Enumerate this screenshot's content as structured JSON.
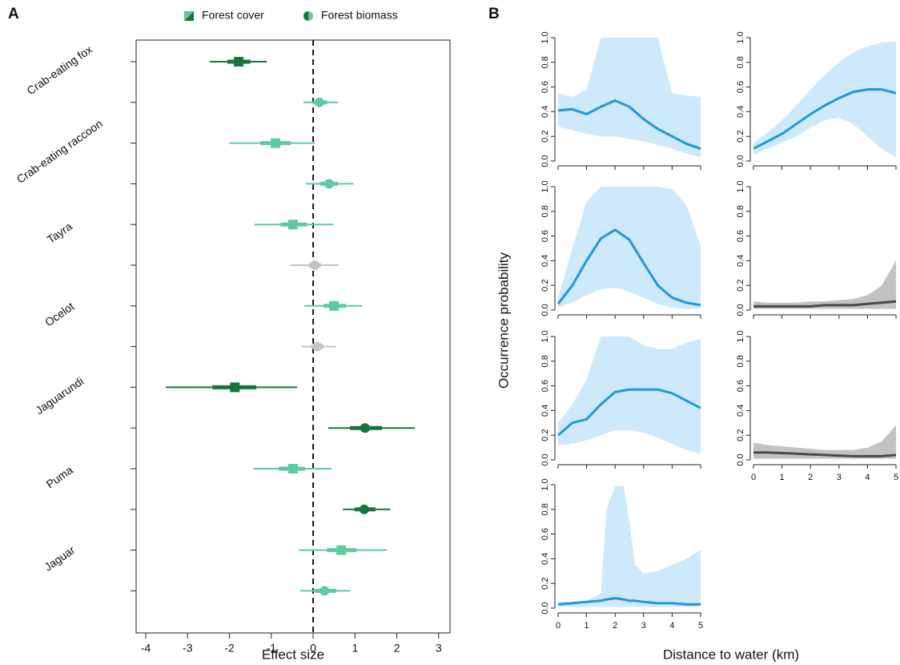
{
  "panel_b": {
    "label": "B",
    "ylabel": "Occurrence probability",
    "xlabel": "Distance to water (km)"
  },
  "chart_data": [
    {
      "type": "forest",
      "panel_label": "A",
      "xlabel": "Effect size",
      "categories": [
        "Crab-eating fox",
        "Crab-eating raccoon",
        "Tayra",
        "Ocelot",
        "Jaguarundi",
        "Puma",
        "Jaguar"
      ],
      "xlim": [
        -4.23,
        3.27
      ],
      "xticks": [
        -4,
        -3,
        -2,
        -1,
        0,
        1,
        2,
        3
      ],
      "refline": 0,
      "series": [
        {
          "name": "Forest cover",
          "marker": "square",
          "values": [
            -1.78,
            -0.9,
            -0.48,
            0.5,
            -1.87,
            -0.48,
            0.67
          ],
          "ci_inner": [
            [
              -2.05,
              -1.5
            ],
            [
              -1.26,
              -0.54
            ],
            [
              -0.78,
              -0.15
            ],
            [
              0.25,
              0.78
            ],
            [
              -2.41,
              -1.36
            ],
            [
              -0.82,
              -0.19
            ],
            [
              0.33,
              1.03
            ]
          ],
          "ci_outer": [
            [
              -2.47,
              -1.11
            ],
            [
              -2.0,
              0.04
            ],
            [
              -1.4,
              0.48
            ],
            [
              -0.21,
              1.17
            ],
            [
              -3.52,
              -0.38
            ],
            [
              -1.43,
              0.44
            ],
            [
              -0.34,
              1.76
            ]
          ],
          "colors": [
            "#17753a",
            "#5ecaa0",
            "#5ecaa0",
            "#5ecaa0",
            "#17753a",
            "#5ecaa0",
            "#5ecaa0"
          ]
        },
        {
          "name": "Forest biomass",
          "marker": "circle",
          "values": [
            0.15,
            0.38,
            0.04,
            0.1,
            1.24,
            1.22,
            0.27
          ],
          "ci_inner": [
            [
              0.0,
              0.33
            ],
            [
              0.17,
              0.59
            ],
            [
              -0.11,
              0.19
            ],
            [
              -0.05,
              0.25
            ],
            [
              0.88,
              1.64
            ],
            [
              0.99,
              1.49
            ],
            [
              0.04,
              0.55
            ]
          ],
          "ci_outer": [
            [
              -0.23,
              0.59
            ],
            [
              -0.17,
              0.96
            ],
            [
              -0.54,
              0.61
            ],
            [
              -0.29,
              0.54
            ],
            [
              0.36,
              2.43
            ],
            [
              0.71,
              1.84
            ],
            [
              -0.31,
              0.88
            ]
          ],
          "colors": [
            "#5ecaa0",
            "#5ecaa0",
            "#c4c4c4",
            "#c4c4c4",
            "#17753a",
            "#17753a",
            "#5ecaa0"
          ]
        }
      ]
    },
    {
      "type": "line",
      "x": [
        0,
        0.5,
        1,
        1.5,
        2,
        2.5,
        3,
        3.5,
        4,
        4.5,
        5
      ],
      "values": [
        0.41,
        0.42,
        0.38,
        0.44,
        0.49,
        0.44,
        0.34,
        0.26,
        0.2,
        0.14,
        0.1
      ],
      "lower": [
        0.28,
        0.25,
        0.22,
        0.2,
        0.2,
        0.18,
        0.16,
        0.13,
        0.1,
        0.06,
        0.03
      ],
      "upper": [
        0.55,
        0.52,
        0.58,
        1,
        1,
        1,
        1,
        1,
        0.55,
        0.53,
        0.52
      ],
      "color": "#1f98e0",
      "band_color": "#cde9fb",
      "xlim": [
        0,
        5
      ],
      "ylim": [
        0,
        1
      ],
      "xticks": [
        0,
        1,
        2,
        3,
        4,
        5
      ],
      "show_xtick_labels": false,
      "yticks": [
        {
          "value": 0,
          "label": "0.0"
        },
        0.2,
        0.4,
        0.6,
        0.8,
        {
          "value": 1,
          "label": "1.0"
        }
      ]
    },
    {
      "type": "line",
      "x": [
        0,
        0.5,
        1,
        1.5,
        2,
        2.5,
        3,
        3.5,
        4,
        4.5,
        5
      ],
      "values": [
        0.1,
        0.16,
        0.22,
        0.3,
        0.38,
        0.45,
        0.51,
        0.56,
        0.58,
        0.58,
        0.55
      ],
      "lower": [
        0.05,
        0.1,
        0.15,
        0.2,
        0.27,
        0.33,
        0.35,
        0.3,
        0.2,
        0.1,
        0.03
      ],
      "upper": [
        0.15,
        0.23,
        0.33,
        0.45,
        0.58,
        0.7,
        0.8,
        0.88,
        0.93,
        0.96,
        0.97
      ],
      "color": "#1f98e0",
      "band_color": "#cde9fb",
      "xlim": [
        0,
        5
      ],
      "ylim": [
        0,
        1
      ],
      "xticks": [
        0,
        1,
        2,
        3,
        4,
        5
      ],
      "show_xtick_labels": false,
      "yticks": [
        {
          "value": 0,
          "label": "0.0"
        },
        0.2,
        0.4,
        0.6,
        0.8,
        {
          "value": 1,
          "label": "1.0"
        }
      ]
    },
    {
      "type": "line",
      "x": [
        0,
        0.5,
        1,
        1.5,
        2,
        2.5,
        3,
        3.5,
        4,
        4.5,
        5
      ],
      "values": [
        0.05,
        0.2,
        0.4,
        0.58,
        0.65,
        0.57,
        0.38,
        0.2,
        0.1,
        0.06,
        0.04
      ],
      "lower": [
        0.02,
        0.06,
        0.12,
        0.17,
        0.18,
        0.15,
        0.1,
        0.05,
        0.02,
        0.01,
        0.01
      ],
      "upper": [
        0.1,
        0.5,
        0.88,
        1,
        1,
        1,
        1,
        1,
        0.98,
        0.85,
        0.52
      ],
      "color": "#1f98e0",
      "band_color": "#cde9fb",
      "xlim": [
        0,
        5
      ],
      "ylim": [
        0,
        1
      ],
      "xticks": [
        0,
        1,
        2,
        3,
        4,
        5
      ],
      "show_xtick_labels": false,
      "yticks": [
        {
          "value": 0,
          "label": "0.0"
        },
        0.2,
        0.4,
        0.6,
        0.8,
        {
          "value": 1,
          "label": "1.0"
        }
      ]
    },
    {
      "type": "line",
      "x": [
        0,
        0.5,
        1,
        1.5,
        2,
        2.5,
        3,
        3.5,
        4,
        4.5,
        5
      ],
      "values": [
        0.03,
        0.03,
        0.03,
        0.03,
        0.03,
        0.04,
        0.04,
        0.04,
        0.05,
        0.06,
        0.07
      ],
      "lower": [
        0.01,
        0.01,
        0.01,
        0.01,
        0.01,
        0.01,
        0.01,
        0.01,
        0.01,
        0.01,
        0.01
      ],
      "upper": [
        0.07,
        0.06,
        0.06,
        0.06,
        0.07,
        0.07,
        0.08,
        0.09,
        0.12,
        0.2,
        0.4
      ],
      "color": "#4a4a4a",
      "band_color": "#c2c2c2",
      "xlim": [
        0,
        5
      ],
      "ylim": [
        0,
        1
      ],
      "xticks": [
        0,
        1,
        2,
        3,
        4,
        5
      ],
      "show_xtick_labels": false,
      "yticks": [
        {
          "value": 0,
          "label": "0.0"
        },
        0.2,
        0.4,
        0.6,
        0.8,
        {
          "value": 1,
          "label": "1.0"
        }
      ]
    },
    {
      "type": "line",
      "x": [
        0,
        0.5,
        1,
        1.5,
        2,
        2.5,
        3,
        3.5,
        4,
        4.5,
        5
      ],
      "values": [
        0.2,
        0.3,
        0.33,
        0.45,
        0.55,
        0.57,
        0.57,
        0.57,
        0.54,
        0.48,
        0.42
      ],
      "lower": [
        0.12,
        0.13,
        0.16,
        0.2,
        0.24,
        0.24,
        0.22,
        0.18,
        0.13,
        0.08,
        0.05
      ],
      "upper": [
        0.3,
        0.45,
        0.65,
        1,
        1,
        1,
        0.93,
        0.9,
        0.9,
        0.95,
        0.98
      ],
      "color": "#1f98e0",
      "band_color": "#cde9fb",
      "xlim": [
        0,
        5
      ],
      "ylim": [
        0,
        1
      ],
      "xticks": [
        0,
        1,
        2,
        3,
        4,
        5
      ],
      "show_xtick_labels": false,
      "yticks": [
        {
          "value": 0,
          "label": "0.0"
        },
        0.2,
        0.4,
        0.6,
        0.8,
        {
          "value": 1,
          "label": "1.0"
        }
      ]
    },
    {
      "type": "line",
      "x": [
        0,
        0.5,
        1,
        1.5,
        2,
        2.5,
        3,
        3.5,
        4,
        4.5,
        5
      ],
      "values": [
        0.06,
        0.06,
        0.055,
        0.05,
        0.045,
        0.04,
        0.035,
        0.03,
        0.03,
        0.03,
        0.04
      ],
      "lower": [
        0.01,
        0.01,
        0.01,
        0.01,
        0.01,
        0.01,
        0.01,
        0.01,
        0.01,
        0.01,
        0.01
      ],
      "upper": [
        0.14,
        0.12,
        0.11,
        0.1,
        0.09,
        0.08,
        0.08,
        0.08,
        0.1,
        0.15,
        0.28
      ],
      "color": "#4a4a4a",
      "band_color": "#c2c2c2",
      "xlim": [
        0,
        5
      ],
      "ylim": [
        0,
        1
      ],
      "xticks": [
        0,
        1,
        2,
        3,
        4,
        5
      ],
      "show_xtick_labels": true,
      "yticks": [
        {
          "value": 0,
          "label": "0.0"
        },
        0.2,
        0.4,
        0.6,
        0.8,
        {
          "value": 1,
          "label": "1.0"
        }
      ]
    },
    {
      "type": "line",
      "x": [
        0,
        0.5,
        1,
        1.5,
        1.7,
        2,
        2.3,
        2.5,
        2.7,
        3,
        3.5,
        4,
        4.5,
        5
      ],
      "values": [
        0.03,
        0.04,
        0.05,
        0.06,
        0.07,
        0.08,
        0.07,
        0.06,
        0.06,
        0.05,
        0.04,
        0.04,
        0.03,
        0.03
      ],
      "lower": [
        0.01,
        0.01,
        0.01,
        0.01,
        0.01,
        0.01,
        0.01,
        0.01,
        0.01,
        0.01,
        0.01,
        0.01,
        0.01,
        0.01
      ],
      "upper": [
        0.05,
        0.05,
        0.06,
        0.12,
        0.8,
        0.99,
        0.99,
        0.7,
        0.35,
        0.28,
        0.3,
        0.35,
        0.4,
        0.47
      ],
      "color": "#1f98e0",
      "band_color": "#cde9fb",
      "xlim": [
        0,
        5
      ],
      "ylim": [
        0,
        1
      ],
      "xticks": [
        0,
        1,
        2,
        3,
        4,
        5
      ],
      "show_xtick_labels": true,
      "yticks": [
        {
          "value": 0,
          "label": "0.0"
        },
        0.2,
        0.4,
        0.6,
        0.8,
        {
          "value": 1,
          "label": "1.0"
        }
      ]
    }
  ]
}
